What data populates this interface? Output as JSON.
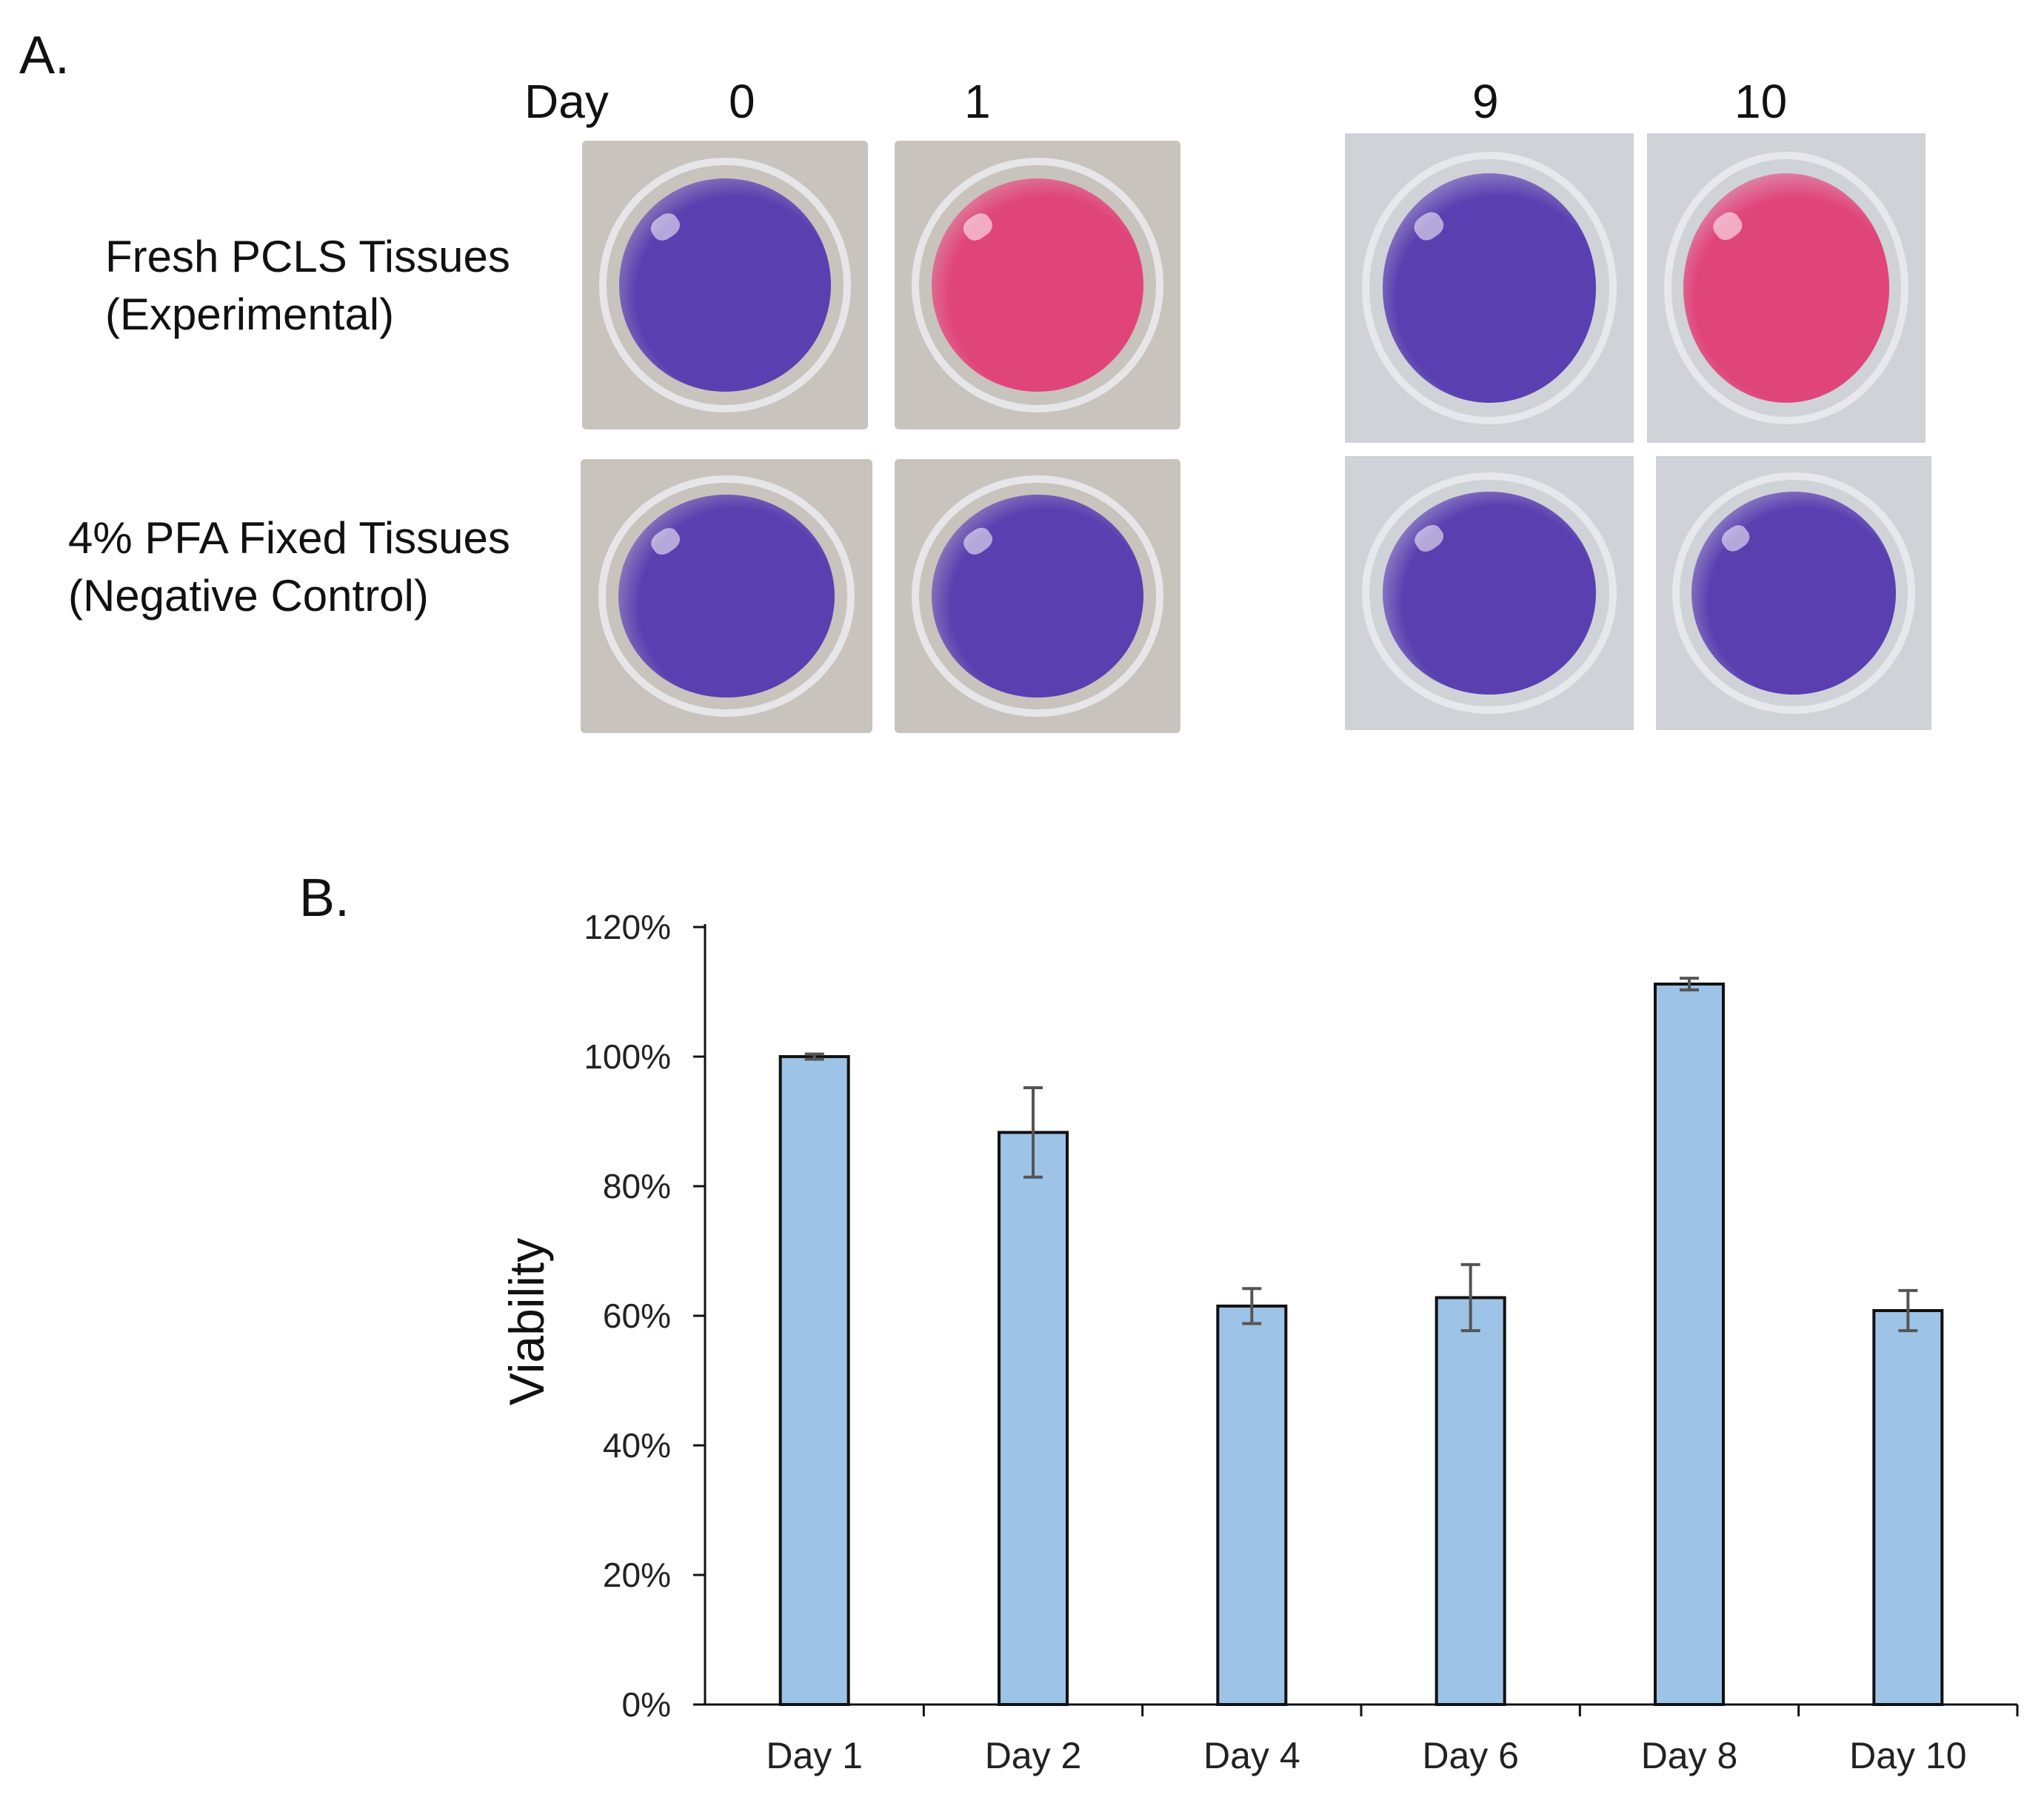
{
  "panel_a": {
    "label": "A.",
    "day_header": "Day",
    "days": [
      "0",
      "1",
      "9",
      "10"
    ],
    "rows": [
      {
        "line1": "Fresh PCLS Tissues",
        "line2": "(Experimental)"
      },
      {
        "line1": "4% PFA Fixed Tissues",
        "line2": "(Negative Control)"
      }
    ],
    "well_colors": {
      "purple": "#5a3fb0",
      "pink": "#e0457a"
    },
    "well_states": [
      [
        "purple",
        "pink",
        "purple",
        "pink"
      ],
      [
        "purple",
        "purple",
        "purple",
        "purple"
      ]
    ]
  },
  "panel_b": {
    "label": "B."
  },
  "chart_data": {
    "type": "bar",
    "title": "",
    "xlabel": "",
    "ylabel": "Viability",
    "categories": [
      "Day 1",
      "Day 2",
      "Day 4",
      "Day 6",
      "Day 8",
      "Day 10"
    ],
    "values": [
      100,
      88.3,
      61.5,
      62.8,
      111.2,
      60.8
    ],
    "errors": [
      0.4,
      6.9,
      2.7,
      5.1,
      0.9,
      3.1
    ],
    "ylim": [
      0,
      120
    ],
    "yticks": [
      0,
      20,
      40,
      60,
      80,
      100,
      120
    ],
    "ytick_labels": [
      "0%",
      "20%",
      "40%",
      "60%",
      "80%",
      "100%",
      "120%"
    ],
    "bar_color": "#9dc3e6",
    "grid": false
  }
}
